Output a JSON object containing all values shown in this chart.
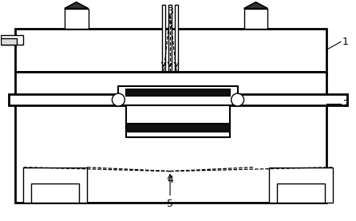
{
  "bg_color": "#ffffff",
  "line_color": "#000000",
  "fig_width": 4.46,
  "fig_height": 2.77,
  "dpi": 100
}
